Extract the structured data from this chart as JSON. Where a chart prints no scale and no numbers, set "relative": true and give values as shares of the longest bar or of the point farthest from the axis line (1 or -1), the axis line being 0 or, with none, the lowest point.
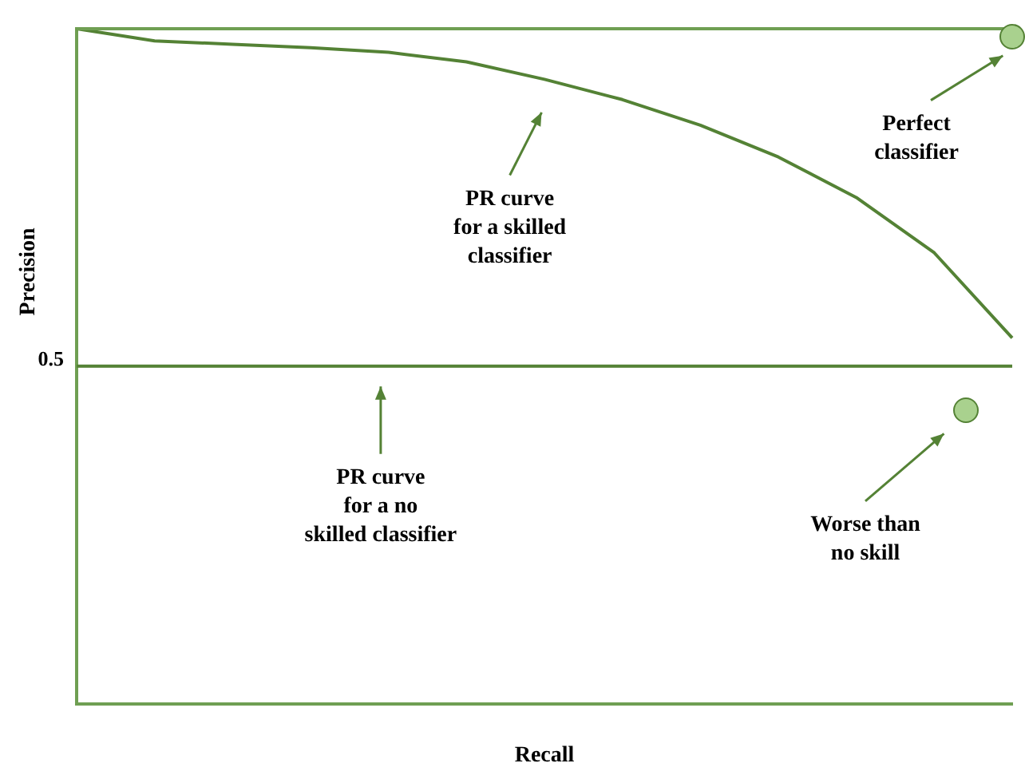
{
  "chart_data": {
    "type": "line",
    "relative": true,
    "xlabel": "Recall",
    "ylabel": "Precision",
    "grid": false,
    "legend": false,
    "marker": "none",
    "line_style": "solid",
    "categories": [
      null,
      null,
      null,
      null,
      null,
      null,
      null,
      null,
      null,
      null,
      null,
      null,
      null
    ],
    "series": [
      {
        "color": "#548235",
        "values": [
          1,
          0.982,
          0.977,
          0.972,
          0.965,
          0.951,
          0.925,
          0.895,
          0.857,
          0.81,
          0.75,
          0.668,
          0.542
        ]
      }
    ],
    "ref_lines": [
      {
        "axis": "y",
        "value": 0.5,
        "label": "0.5",
        "color": "#548235"
      }
    ],
    "annotations": [
      "PR curve\nfor a skilled\nclassifier",
      "PR curve\nfor a no\nskilled classifier",
      "Perfect\nclassifier",
      "Worse than\nno skill"
    ]
  }
}
